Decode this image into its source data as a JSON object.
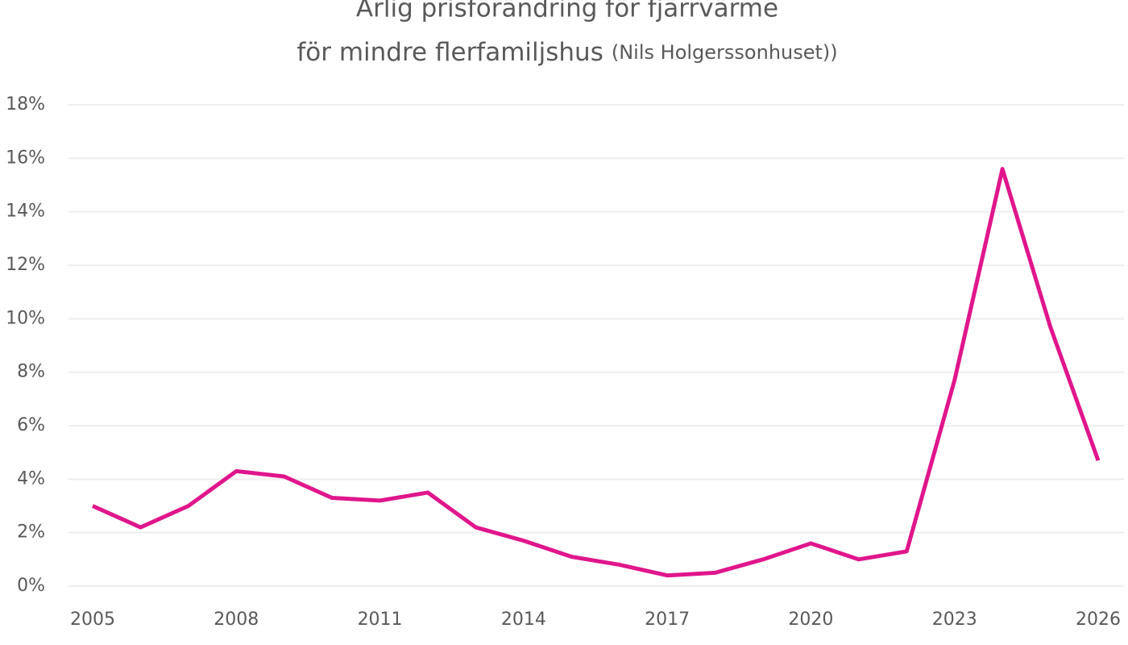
{
  "chart_data": {
    "type": "line",
    "title": [
      "Årlig prisförändring för fjärrvärme",
      "för mindre flerfamiljshus"
    ],
    "title_note": "(Nils Holgerssonhuset))",
    "x": [
      2005,
      2006,
      2007,
      2008,
      2009,
      2010,
      2011,
      2012,
      2013,
      2014,
      2015,
      2016,
      2017,
      2018,
      2019,
      2020,
      2021,
      2022,
      2023,
      2024,
      2025,
      2026
    ],
    "series": [
      {
        "color": "#e0168c",
        "values": [
          3.0,
          2.2,
          3.0,
          4.3,
          4.1,
          3.3,
          3.2,
          3.5,
          2.2,
          1.7,
          1.1,
          0.8,
          0.4,
          0.5,
          1.0,
          1.6,
          1.0,
          1.3,
          7.7,
          15.6,
          9.7,
          4.7
        ]
      }
    ],
    "xlim": [
      2005,
      2026
    ],
    "xticks": [
      2005,
      2008,
      2011,
      2014,
      2017,
      2020,
      2023,
      2026
    ],
    "ylim": [
      0,
      18
    ],
    "yticks": [
      {
        "value": 0,
        "label": "0%"
      },
      {
        "value": 2,
        "label": "2%"
      },
      {
        "value": 4,
        "label": "4%"
      },
      {
        "value": 6,
        "label": "6%"
      },
      {
        "value": 8,
        "label": "8%"
      },
      {
        "value": 10,
        "label": "10%"
      },
      {
        "value": 12,
        "label": "12%"
      },
      {
        "value": 14,
        "label": "14%"
      },
      {
        "value": 16,
        "label": "16%"
      },
      {
        "value": 18,
        "label": "18%"
      }
    ],
    "grid": true,
    "grid_color": "#eeeeee"
  }
}
